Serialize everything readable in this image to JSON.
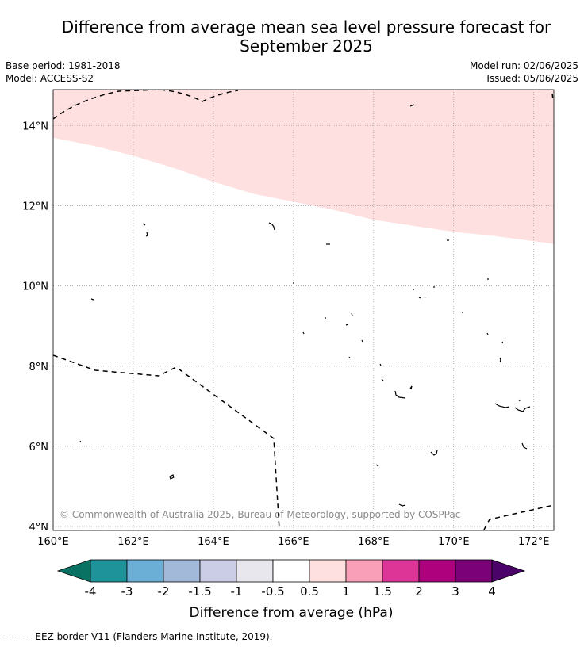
{
  "title_line1": "Difference from average mean sea level pressure forecast for",
  "title_line2": "September 2025",
  "base_period": "Base period: 1981-2018",
  "model": "Model: ACCESS-S2",
  "model_run": "Model run: 02/06/2025",
  "issued": "Issued: 05/06/2025",
  "copyright": "© Commonwealth of Australia 2025, Bureau of Meteorology, supported by COSPPac",
  "map": {
    "lon_range": [
      160,
      172.5
    ],
    "lat_range": [
      3.9,
      14.9
    ],
    "lon_ticks": [
      "160°E",
      "162°E",
      "164°E",
      "166°E",
      "168°E",
      "170°E",
      "172°E"
    ],
    "lat_ticks": [
      "4°N",
      "6°N",
      "8°N",
      "10°N",
      "12°N",
      "14°N"
    ],
    "region_boundary_lonlat": [
      [
        160,
        13.7
      ],
      [
        161,
        13.5
      ],
      [
        162,
        13.25
      ],
      [
        163,
        12.95
      ],
      [
        164,
        12.6
      ],
      [
        165,
        12.3
      ],
      [
        166,
        12.1
      ],
      [
        167,
        11.9
      ],
      [
        168,
        11.65
      ],
      [
        169,
        11.5
      ],
      [
        170,
        11.35
      ],
      [
        171,
        11.25
      ],
      [
        172.5,
        11.05
      ]
    ],
    "region_value": "0.5 to 1",
    "region_color": "#fde0df"
  },
  "colorbar": {
    "title": "Difference from average (hPa)",
    "labels": [
      "-4",
      "-3",
      "-2",
      "-1.5",
      "-1",
      "-0.5",
      "0.5",
      "1",
      "1.5",
      "2",
      "3",
      "4"
    ],
    "low_extend_color": "#0a7263",
    "high_extend_color": "#4b0369",
    "colors": [
      "#1e9399",
      "#6baed6",
      "#a3b9da",
      "#cbcde6",
      "#e8e7ee",
      "#ffffff",
      "#fde0df",
      "#f99fb8",
      "#dd3498",
      "#ad017e",
      "#7a0177"
    ]
  },
  "footer": "--  --  -- EEZ border V11 (Flanders Marine Institute, 2019)."
}
